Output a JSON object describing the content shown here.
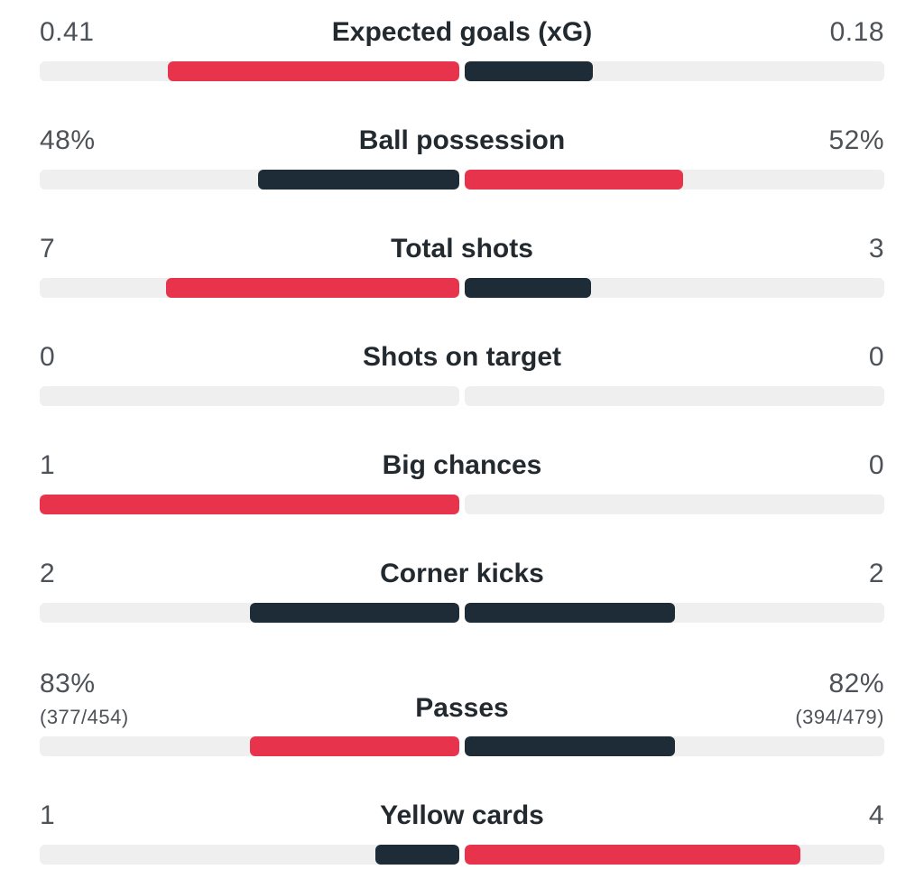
{
  "colors": {
    "red": "#e8334d",
    "navy": "#1d2c36",
    "track": "#efefef"
  },
  "stats": [
    {
      "label": "Expected goals (xG)",
      "home": {
        "text": "0.41",
        "sub": "",
        "fill": 0.695,
        "color": "red"
      },
      "away": {
        "text": "0.18",
        "sub": "",
        "fill": 0.305,
        "color": "navy"
      }
    },
    {
      "label": "Ball possession",
      "home": {
        "text": "48%",
        "sub": "",
        "fill": 0.48,
        "color": "navy"
      },
      "away": {
        "text": "52%",
        "sub": "",
        "fill": 0.52,
        "color": "red"
      }
    },
    {
      "label": "Total shots",
      "home": {
        "text": "7",
        "sub": "",
        "fill": 0.7,
        "color": "red"
      },
      "away": {
        "text": "3",
        "sub": "",
        "fill": 0.3,
        "color": "navy"
      }
    },
    {
      "label": "Shots on target",
      "home": {
        "text": "0",
        "sub": "",
        "fill": 0,
        "color": "red"
      },
      "away": {
        "text": "0",
        "sub": "",
        "fill": 0,
        "color": "navy"
      }
    },
    {
      "label": "Big chances",
      "home": {
        "text": "1",
        "sub": "",
        "fill": 1.0,
        "color": "red"
      },
      "away": {
        "text": "0",
        "sub": "",
        "fill": 0,
        "color": "navy"
      }
    },
    {
      "label": "Corner kicks",
      "home": {
        "text": "2",
        "sub": "",
        "fill": 0.5,
        "color": "navy"
      },
      "away": {
        "text": "2",
        "sub": "",
        "fill": 0.5,
        "color": "navy"
      }
    },
    {
      "label": "Passes",
      "home": {
        "text": "83%",
        "sub": "(377/454)",
        "fill": 0.5,
        "color": "red"
      },
      "away": {
        "text": "82%",
        "sub": "(394/479)",
        "fill": 0.5,
        "color": "navy"
      }
    },
    {
      "label": "Yellow cards",
      "home": {
        "text": "1",
        "sub": "",
        "fill": 0.2,
        "color": "navy"
      },
      "away": {
        "text": "4",
        "sub": "",
        "fill": 0.8,
        "color": "red"
      }
    }
  ]
}
